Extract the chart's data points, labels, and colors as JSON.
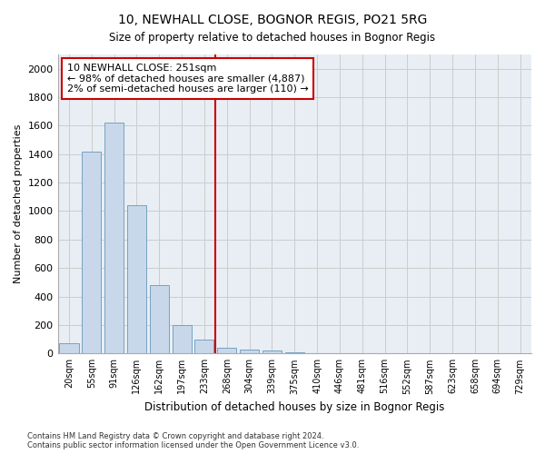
{
  "title": "10, NEWHALL CLOSE, BOGNOR REGIS, PO21 5RG",
  "subtitle": "Size of property relative to detached houses in Bognor Regis",
  "xlabel": "Distribution of detached houses by size in Bognor Regis",
  "ylabel": "Number of detached properties",
  "bar_labels": [
    "20sqm",
    "55sqm",
    "91sqm",
    "126sqm",
    "162sqm",
    "197sqm",
    "233sqm",
    "268sqm",
    "304sqm",
    "339sqm",
    "375sqm",
    "410sqm",
    "446sqm",
    "481sqm",
    "516sqm",
    "552sqm",
    "587sqm",
    "623sqm",
    "658sqm",
    "694sqm",
    "729sqm"
  ],
  "bar_values": [
    75,
    1420,
    1620,
    1040,
    480,
    200,
    100,
    40,
    25,
    20,
    10,
    0,
    0,
    0,
    0,
    0,
    0,
    0,
    0,
    0,
    0
  ],
  "bar_color": "#c8d8ea",
  "bar_edgecolor": "#6699bb",
  "grid_color": "#cccccc",
  "vline_color": "#cc0000",
  "annotation_text": "10 NEWHALL CLOSE: 251sqm\n← 98% of detached houses are smaller (4,887)\n2% of semi-detached houses are larger (110) →",
  "annotation_box_color": "#cc0000",
  "ylim": [
    0,
    2100
  ],
  "yticks": [
    0,
    200,
    400,
    600,
    800,
    1000,
    1200,
    1400,
    1600,
    1800,
    2000
  ],
  "footer1": "Contains HM Land Registry data © Crown copyright and database right 2024.",
  "footer2": "Contains public sector information licensed under the Open Government Licence v3.0.",
  "bg_color": "#ffffff",
  "plot_bg_color": "#e8eef4"
}
